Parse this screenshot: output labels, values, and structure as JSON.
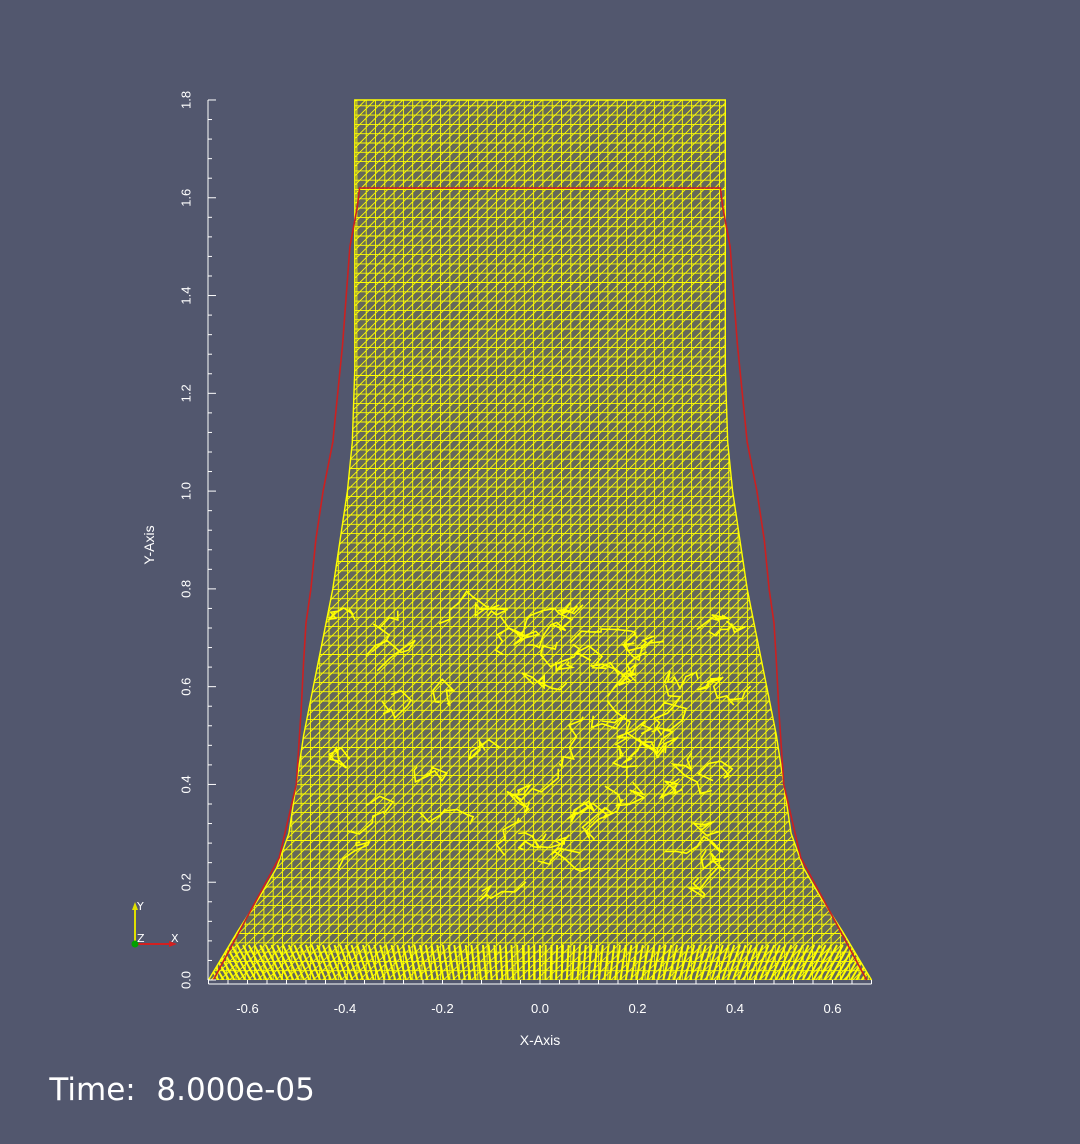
{
  "viewer": {
    "background": "#52576e",
    "time_label": "Time:",
    "time_value": "8.000e-05"
  },
  "orientation_axes": {
    "y_label": "Y",
    "z_label": "Z",
    "x_label": "X",
    "y_color": "#e0e000",
    "x_color": "#d22020",
    "z_color": "#00a000"
  },
  "chart_data": {
    "type": "line",
    "xlabel": "X-Axis",
    "ylabel": "Y-Axis",
    "xlim": [
      -0.68,
      0.68
    ],
    "ylim": [
      0.0,
      1.8
    ],
    "x_ticks": [
      "-0.6",
      "-0.4",
      "-0.2",
      "0.0",
      "0.2",
      "0.4",
      "0.6"
    ],
    "y_ticks": [
      "0.0",
      "0.2",
      "0.4",
      "0.6",
      "0.8",
      "1.0",
      "1.2",
      "1.4",
      "1.6",
      "1.8"
    ],
    "mesh_color": "#ffff00",
    "series": [
      {
        "color": "#ffff00",
        "x": [
          -0.68,
          -0.62,
          -0.575,
          -0.54,
          -0.515,
          -0.5,
          -0.485,
          -0.465,
          -0.445,
          -0.425,
          -0.41,
          -0.395,
          -0.385,
          -0.38,
          -0.38,
          -0.38,
          0.38,
          0.38,
          0.38,
          0.385,
          0.395,
          0.41,
          0.425,
          0.445,
          0.465,
          0.485,
          0.5,
          0.515,
          0.54,
          0.575,
          0.62,
          0.68
        ],
        "y": [
          0.0,
          0.1,
          0.17,
          0.23,
          0.3,
          0.4,
          0.5,
          0.6,
          0.7,
          0.8,
          0.9,
          1.0,
          1.1,
          1.25,
          1.6,
          1.8,
          1.8,
          1.6,
          1.25,
          1.1,
          1.0,
          0.9,
          0.8,
          0.7,
          0.6,
          0.5,
          0.4,
          0.3,
          0.23,
          0.17,
          0.1,
          0.0
        ]
      },
      {
        "color": "#cc2020",
        "x": [
          -0.67,
          -0.6,
          -0.535,
          -0.5,
          -0.49,
          -0.485,
          -0.48,
          -0.47,
          -0.46,
          -0.445,
          -0.425,
          -0.405,
          -0.39,
          -0.375,
          -0.37,
          0.37,
          0.375,
          0.39,
          0.405,
          0.425,
          0.445,
          0.46,
          0.47,
          0.48,
          0.485,
          0.49,
          0.5,
          0.535,
          0.6,
          0.67
        ],
        "y": [
          0.0,
          0.13,
          0.25,
          0.4,
          0.55,
          0.65,
          0.73,
          0.8,
          0.9,
          1.0,
          1.1,
          1.3,
          1.5,
          1.58,
          1.62,
          1.62,
          1.58,
          1.5,
          1.3,
          1.1,
          1.0,
          0.9,
          0.8,
          0.73,
          0.65,
          0.55,
          0.4,
          0.25,
          0.13,
          0.0
        ]
      }
    ]
  }
}
